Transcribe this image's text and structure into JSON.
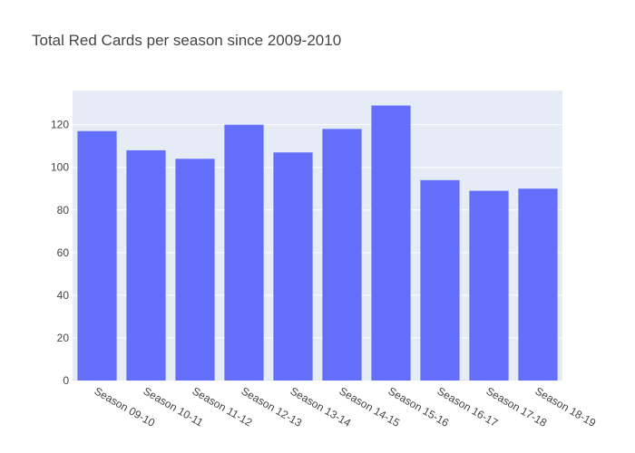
{
  "chart_data": {
    "type": "bar",
    "title": "Total Red Cards per season since 2009-2010",
    "xlabel": "",
    "ylabel": "",
    "categories": [
      "Season 09-10",
      "Season 10-11",
      "Season 11-12",
      "Season 12-13",
      "Season 13-14",
      "Season 14-15",
      "Season 15-16",
      "Season 16-17",
      "Season 17-18",
      "Season 18-19"
    ],
    "values": [
      117,
      108,
      104,
      120,
      107,
      118,
      129,
      94,
      89,
      90
    ],
    "ylim": [
      0,
      136
    ],
    "yticks": [
      0,
      20,
      40,
      60,
      80,
      100,
      120
    ],
    "grid": true,
    "legend": "none",
    "colors": {
      "bar": "#636efa",
      "plot_bg": "#e5ecf6",
      "grid": "#ffffff",
      "text": "#444444"
    }
  }
}
